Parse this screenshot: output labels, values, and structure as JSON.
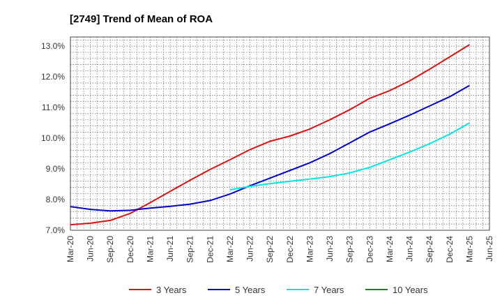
{
  "chart_data": {
    "type": "line",
    "title": "[2749]  Trend of Mean of ROA",
    "xlabel": "",
    "ylabel": "",
    "categories": [
      "Mar-20",
      "Jun-20",
      "Sep-20",
      "Dec-20",
      "Mar-21",
      "Jun-21",
      "Sep-21",
      "Dec-21",
      "Mar-22",
      "Jun-22",
      "Sep-22",
      "Dec-22",
      "Mar-23",
      "Jun-23",
      "Sep-23",
      "Dec-23",
      "Mar-24",
      "Jun-24",
      "Sep-24",
      "Dec-24",
      "Mar-25",
      "Jun-25"
    ],
    "ylim": [
      7.0,
      13.3
    ],
    "yticks": [
      "7.0%",
      "8.0%",
      "9.0%",
      "10.0%",
      "11.0%",
      "12.0%",
      "13.0%"
    ],
    "ytick_values": [
      7.0,
      8.0,
      9.0,
      10.0,
      11.0,
      12.0,
      13.0
    ],
    "grid": true,
    "legend_position": "bottom",
    "series": [
      {
        "name": "3 Years",
        "color": "#dd1111",
        "values": [
          7.18,
          7.23,
          7.32,
          7.55,
          7.9,
          8.27,
          8.63,
          8.98,
          9.3,
          9.63,
          9.9,
          10.07,
          10.3,
          10.6,
          10.93,
          11.3,
          11.55,
          11.87,
          12.25,
          12.65,
          13.05,
          null
        ]
      },
      {
        "name": "5 Years",
        "color": "#0000cc",
        "values": [
          7.77,
          7.68,
          7.63,
          7.65,
          7.72,
          7.78,
          7.85,
          7.97,
          8.18,
          8.45,
          8.7,
          8.95,
          9.2,
          9.5,
          9.85,
          10.2,
          10.47,
          10.75,
          11.05,
          11.35,
          11.72,
          null
        ]
      },
      {
        "name": "7 Years",
        "color": "#00e5e5",
        "values": [
          null,
          null,
          null,
          null,
          null,
          null,
          null,
          null,
          8.32,
          8.43,
          8.52,
          8.6,
          8.67,
          8.75,
          8.87,
          9.05,
          9.3,
          9.55,
          9.82,
          10.13,
          10.5,
          null
        ]
      },
      {
        "name": "10 Years",
        "color": "#118811",
        "values": [
          null,
          null,
          null,
          null,
          null,
          null,
          null,
          null,
          null,
          null,
          null,
          null,
          null,
          null,
          null,
          null,
          null,
          null,
          null,
          null,
          null,
          null
        ]
      }
    ]
  }
}
